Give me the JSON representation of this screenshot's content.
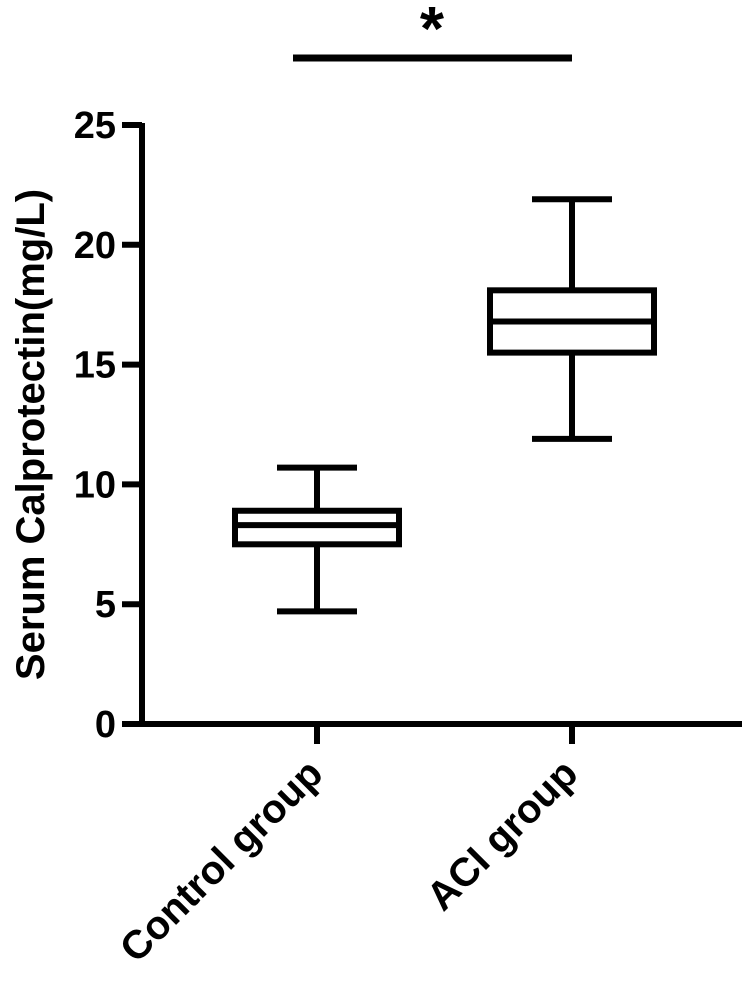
{
  "chart_data": {
    "type": "box",
    "title": "",
    "xlabel": "",
    "ylabel": "Serum Calprotectin(mg/L)",
    "ylim": [
      0,
      25
    ],
    "yticks": [
      "0",
      "5",
      "10",
      "15",
      "20",
      "25"
    ],
    "categories": [
      "Control group",
      "ACI group"
    ],
    "boxes": [
      {
        "category": "Control group",
        "min": 4.7,
        "q1": 7.5,
        "median": 8.3,
        "q3": 8.9,
        "max": 10.7
      },
      {
        "category": "ACI group",
        "min": 11.9,
        "q1": 15.5,
        "median": 16.8,
        "q3": 18.1,
        "max": 21.9
      }
    ],
    "significance": {
      "between": [
        "Control group",
        "ACI group"
      ],
      "label": "*"
    },
    "grid": false,
    "legend": "none",
    "colors": {
      "stroke": "#000000",
      "fill": "#ffffff"
    }
  }
}
